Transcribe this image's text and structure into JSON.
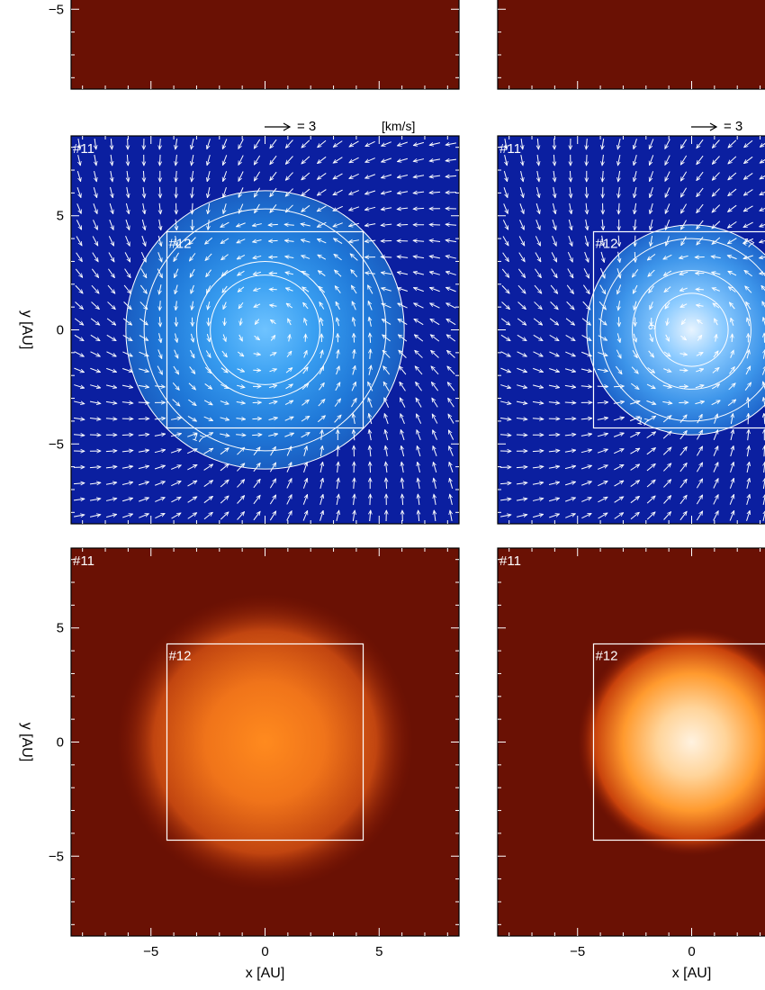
{
  "chart_data": [
    {
      "type": "heatmap",
      "row": "top",
      "column": "left",
      "panel_label": "",
      "colormap": "red",
      "x_ticks": [],
      "y_ticks": [
        "-5"
      ],
      "xlabel": "",
      "ylabel": "",
      "xlim": [
        -8.5,
        8.5
      ],
      "ylim": [
        -8.5,
        8.5
      ],
      "data_description": "uniform dark red field (cropped)"
    },
    {
      "type": "heatmap",
      "row": "top",
      "column": "right",
      "panel_label": "",
      "colormap": "red",
      "x_ticks": [],
      "y_ticks": [],
      "xlabel": "",
      "ylabel": "",
      "xlim": [
        -8.5,
        8.5
      ],
      "ylim": [
        -8.5,
        8.5
      ]
    },
    {
      "type": "heatmap",
      "row": "middle",
      "column": "left",
      "colormap": "blue",
      "panel_label": "#11",
      "subgrid_label": "#12",
      "subgrid_box": {
        "x": [
          -4.3,
          4.3
        ],
        "y": [
          -4.3,
          4.3
        ]
      },
      "velocity_key": {
        "arrow": "→",
        "text": "= 3",
        "unit": "[km/s]"
      },
      "contour_label": "17",
      "contour_radii": [
        6.1,
        5.3,
        3.0,
        2.4
      ],
      "blob": {
        "center": [
          0,
          0
        ],
        "radius": 6.1
      },
      "x_ticks": [],
      "y_ticks": [
        "-5",
        "0",
        "5"
      ],
      "xlabel": "",
      "ylabel": "y [AU]",
      "xlim": [
        -8.5,
        8.5
      ],
      "ylim": [
        -8.5,
        8.5
      ]
    },
    {
      "type": "heatmap",
      "row": "middle",
      "column": "right",
      "colormap": "blue",
      "panel_label": "#11",
      "subgrid_label": "#12",
      "subgrid_box": {
        "x": [
          -4.3,
          4.3
        ],
        "y": [
          -4.3,
          4.3
        ]
      },
      "velocity_key": {
        "arrow": "→",
        "text": "= 3",
        "unit": ""
      },
      "contour_labels": [
        "17",
        "9"
      ],
      "contour_radii": [
        4.6,
        4.0,
        2.6,
        1.6
      ],
      "blob": {
        "center": [
          0,
          0
        ],
        "radius": 4.6
      },
      "x_ticks": [],
      "y_ticks": [],
      "xlabel": "",
      "ylabel": "",
      "xlim": [
        -8.5,
        8.5
      ],
      "ylim": [
        -8.5,
        8.5
      ]
    },
    {
      "type": "heatmap",
      "row": "bottom",
      "column": "left",
      "colormap": "red",
      "panel_label": "#11",
      "subgrid_label": "#12",
      "subgrid_box": {
        "x": [
          -4.3,
          4.3
        ],
        "y": [
          -4.3,
          4.3
        ]
      },
      "blob": {
        "center": [
          0,
          0
        ],
        "radius": 6.5
      },
      "x_ticks": [
        "-5",
        "0",
        "5"
      ],
      "y_ticks": [
        "-5",
        "0",
        "5"
      ],
      "xlabel": "x [AU]",
      "ylabel": "y [AU]",
      "xlim": [
        -8.5,
        8.5
      ],
      "ylim": [
        -8.5,
        8.5
      ]
    },
    {
      "type": "heatmap",
      "row": "bottom",
      "column": "right",
      "colormap": "red",
      "panel_label": "#11",
      "subgrid_label": "#12",
      "subgrid_box": {
        "x": [
          -4.3,
          4.3
        ],
        "y": [
          -4.3,
          4.3
        ]
      },
      "blob": {
        "center": [
          0,
          0
        ],
        "radius": 5.0
      },
      "x_ticks": [
        "-5",
        "0"
      ],
      "y_ticks": [],
      "xlabel": "x [AU]",
      "ylabel": "",
      "xlim": [
        -8.5,
        8.5
      ],
      "ylim": [
        -8.5,
        8.5
      ]
    }
  ]
}
